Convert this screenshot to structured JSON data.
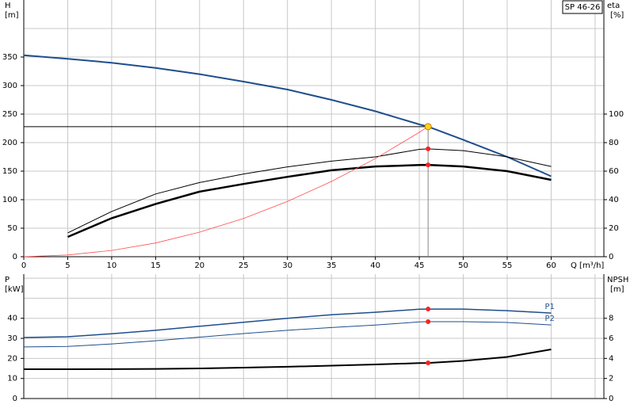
{
  "chart_data": [
    {
      "type": "line",
      "legend_box": "SP 46-26",
      "y_label": "H",
      "y_unit": "[m]",
      "y2_label": "eta",
      "y2_unit": "[%]",
      "x_label": "Q [m³/h]",
      "x": [
        0,
        5,
        10,
        15,
        20,
        25,
        30,
        35,
        40,
        45,
        46,
        50,
        55,
        60
      ],
      "xlim": [
        0,
        66
      ],
      "xticks": [
        0,
        5,
        10,
        15,
        20,
        25,
        30,
        35,
        40,
        45,
        50,
        55,
        60
      ],
      "xgrid": [
        5,
        10,
        15,
        20,
        25,
        30,
        35,
        40,
        45,
        50,
        55,
        60,
        65
      ],
      "ylim": [
        0,
        450
      ],
      "yticks": [
        0,
        50,
        100,
        150,
        200,
        250,
        300,
        350
      ],
      "ygrid": [
        50,
        100,
        150,
        200,
        250,
        300,
        350,
        400
      ],
      "y2lim": [
        0,
        180
      ],
      "y2ticks": [
        0,
        20,
        40,
        60,
        80,
        100
      ],
      "duty_x": 46,
      "duty_color": "#ffd21f",
      "series": [
        {
          "color": "#1f4e8c",
          "width": 2,
          "duty_lines": true,
          "values": [
            353,
            347,
            340,
            331,
            320,
            307,
            293,
            275,
            255,
            232,
            228,
            205,
            175,
            141
          ]
        },
        {
          "color": "#000000",
          "width": 1,
          "axis": "y2",
          "point_color": "#ff2020",
          "values": [
            null,
            16.7,
            31.7,
            44,
            52,
            58,
            63,
            67,
            70,
            75.3,
            75.6,
            74.4,
            70,
            63.3
          ]
        },
        {
          "color": "#000000",
          "width": 2.5,
          "axis": "y2",
          "point_color": "#ff2020",
          "values": [
            null,
            13.9,
            27,
            37,
            45.6,
            51,
            56,
            60.6,
            63.3,
            64.3,
            64.4,
            63.3,
            60,
            53.9
          ]
        },
        {
          "color": "#ff5050",
          "width": 0.8,
          "values": [
            0,
            3,
            11,
            24,
            43,
            67,
            97,
            132,
            172,
            218,
            228,
            null,
            null,
            null
          ]
        }
      ]
    },
    {
      "type": "line",
      "y_label": "P",
      "y_unit": "[kW]",
      "y2_label": "NPSH",
      "y2_unit": "[m]",
      "x": [
        0,
        5,
        10,
        15,
        20,
        25,
        30,
        35,
        40,
        45,
        46,
        50,
        55,
        60
      ],
      "xlim": [
        0,
        66
      ],
      "xgrid": [
        5,
        10,
        15,
        20,
        25,
        30,
        35,
        40,
        45,
        50,
        55,
        60,
        65
      ],
      "ylim": [
        0,
        62
      ],
      "yticks": [
        0,
        10,
        20,
        30,
        40
      ],
      "ygrid": [
        10,
        20,
        30,
        40,
        50,
        60
      ],
      "y2lim": [
        0,
        12.4
      ],
      "y2ticks": [
        0,
        2,
        4,
        6,
        8
      ],
      "duty_x": 46,
      "series": [
        {
          "name": "P1",
          "color": "#1f4e8c",
          "width": 1.5,
          "point_color": "#ff2020",
          "values": [
            30.4,
            30.8,
            32.3,
            34,
            36,
            38,
            40,
            41.8,
            43,
            44.5,
            44.6,
            44.6,
            43.8,
            42.6
          ]
        },
        {
          "name": "P2",
          "color": "#1f4e8c",
          "width": 1,
          "point_color": "#ff2020",
          "values": [
            25.7,
            26,
            27.2,
            28.8,
            30.6,
            32.4,
            34,
            35.4,
            36.6,
            38.2,
            38.3,
            38.3,
            37.9,
            36.7
          ]
        },
        {
          "color": "#000000",
          "width": 2,
          "axis": "y2",
          "point_color": "#ff2020",
          "values": [
            2.92,
            2.92,
            2.93,
            2.95,
            3.0,
            3.08,
            3.17,
            3.28,
            3.4,
            3.53,
            3.55,
            3.75,
            4.15,
            4.9
          ]
        }
      ]
    }
  ]
}
